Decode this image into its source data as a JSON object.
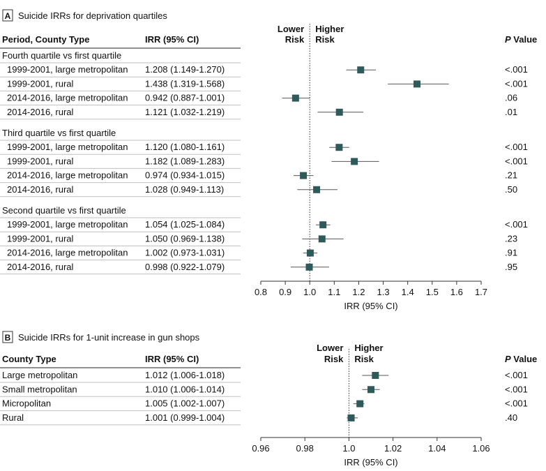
{
  "chart_data": [
    {
      "type": "forest",
      "panel_letter": "A",
      "title": "Suicide IRRs for deprivation quartiles",
      "column_headers": {
        "label": "Period, County Type",
        "estimate": "IRR (95% CI)",
        "pvalue": "P Value",
        "pvalue_p": "P",
        "pvalue_rest": " Value"
      },
      "risk_labels": {
        "lower_line1": "Lower",
        "lower_line2": "Risk",
        "higher_line1": "Higher",
        "higher_line2": "Risk"
      },
      "xlabel": "IRR (95% CI)",
      "xlim": [
        0.8,
        1.7
      ],
      "ticks": [
        0.8,
        0.9,
        1.0,
        1.1,
        1.2,
        1.3,
        1.4,
        1.5,
        1.6,
        1.7
      ],
      "tick_labels": [
        "0.8",
        "0.9",
        "1.0",
        "1.1",
        "1.2",
        "1.3",
        "1.4",
        "1.5",
        "1.6",
        "1.7"
      ],
      "reference_line": 1.0,
      "groups": [
        {
          "label": "Fourth quartile vs first quartile",
          "rows": [
            {
              "label": "1999-2001, large metropolitan",
              "ci_text": "1.208 (1.149-1.270)",
              "irr": 1.208,
              "lo": 1.149,
              "hi": 1.27,
              "p": "<.001"
            },
            {
              "label": "1999-2001, rural",
              "ci_text": "1.438 (1.319-1.568)",
              "irr": 1.438,
              "lo": 1.319,
              "hi": 1.568,
              "p": "<.001"
            },
            {
              "label": "2014-2016, large metropolitan",
              "ci_text": "0.942 (0.887-1.001)",
              "irr": 0.942,
              "lo": 0.887,
              "hi": 1.001,
              "p": ".06"
            },
            {
              "label": "2014-2016, rural",
              "ci_text": "1.121 (1.032-1.219)",
              "irr": 1.121,
              "lo": 1.032,
              "hi": 1.219,
              "p": ".01"
            }
          ]
        },
        {
          "label": "Third quartile vs first quartile",
          "rows": [
            {
              "label": "1999-2001, large metropolitan",
              "ci_text": "1.120 (1.080-1.161)",
              "irr": 1.12,
              "lo": 1.08,
              "hi": 1.161,
              "p": "<.001"
            },
            {
              "label": "1999-2001, rural",
              "ci_text": "1.182 (1.089-1.283)",
              "irr": 1.182,
              "lo": 1.089,
              "hi": 1.283,
              "p": "<.001"
            },
            {
              "label": "2014-2016, large metropolitan",
              "ci_text": "0.974 (0.934-1.015)",
              "irr": 0.974,
              "lo": 0.934,
              "hi": 1.015,
              "p": ".21"
            },
            {
              "label": "2014-2016, rural",
              "ci_text": "1.028 (0.949-1.113)",
              "irr": 1.028,
              "lo": 0.949,
              "hi": 1.113,
              "p": ".50"
            }
          ]
        },
        {
          "label": "Second quartile vs first quartile",
          "rows": [
            {
              "label": "1999-2001, large metropolitan",
              "ci_text": "1.054 (1.025-1.084)",
              "irr": 1.054,
              "lo": 1.025,
              "hi": 1.084,
              "p": "<.001"
            },
            {
              "label": "1999-2001, rural",
              "ci_text": "1.050 (0.969-1.138)",
              "irr": 1.05,
              "lo": 0.969,
              "hi": 1.138,
              "p": ".23"
            },
            {
              "label": "2014-2016, large metropolitan",
              "ci_text": "1.002 (0.973-1.031)",
              "irr": 1.002,
              "lo": 0.973,
              "hi": 1.031,
              "p": ".91"
            },
            {
              "label": "2014-2016, rural",
              "ci_text": "0.998 (0.922-1.079)",
              "irr": 0.998,
              "lo": 0.922,
              "hi": 1.079,
              "p": ".95"
            }
          ]
        }
      ]
    },
    {
      "type": "forest",
      "panel_letter": "B",
      "title": "Suicide IRRs for 1-unit increase in gun shops",
      "column_headers": {
        "label": "County Type",
        "estimate": "IRR (95% CI)",
        "pvalue": "P Value",
        "pvalue_p": "P",
        "pvalue_rest": " Value"
      },
      "risk_labels": {
        "lower_line1": "Lower",
        "lower_line2": "Risk",
        "higher_line1": "Higher",
        "higher_line2": "Risk"
      },
      "xlabel": "IRR (95% CI)",
      "xlim": [
        0.96,
        1.06
      ],
      "ticks": [
        0.96,
        0.98,
        1.0,
        1.02,
        1.04,
        1.06
      ],
      "tick_labels": [
        "0.96",
        "0.98",
        "1.0",
        "1.02",
        "1.04",
        "1.06"
      ],
      "reference_line": 1.0,
      "rows": [
        {
          "label": "Large metropolitan",
          "ci_text": "1.012 (1.006-1.018)",
          "irr": 1.012,
          "lo": 1.006,
          "hi": 1.018,
          "p": "<.001"
        },
        {
          "label": "Small metropolitan",
          "ci_text": "1.010 (1.006-1.014)",
          "irr": 1.01,
          "lo": 1.006,
          "hi": 1.014,
          "p": "<.001"
        },
        {
          "label": "Micropolitan",
          "ci_text": "1.005 (1.002-1.007)",
          "irr": 1.005,
          "lo": 1.002,
          "hi": 1.007,
          "p": "<.001"
        },
        {
          "label": "Rural",
          "ci_text": "1.001 (0.999-1.004)",
          "irr": 1.001,
          "lo": 0.999,
          "hi": 1.004,
          "p": ".40"
        }
      ]
    }
  ],
  "colors": {
    "marker": "#2f5a5a",
    "ci_line": "#555555",
    "axis": "#333333",
    "rule": "#bfbfbf",
    "text": "#111111"
  }
}
